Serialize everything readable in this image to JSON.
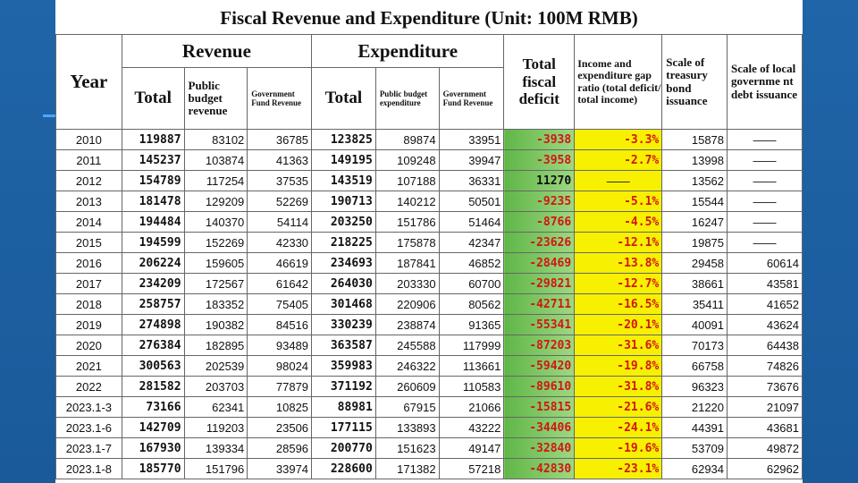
{
  "title": "Fiscal Revenue and Expenditure (Unit: 100M RMB)",
  "headers": {
    "year": "Year",
    "revenue": "Revenue",
    "expenditure": "Expenditure",
    "total": "Total",
    "public_budget_revenue": "Public budget revenue",
    "government_fund_revenue": "Government Fund Revenue",
    "public_budget_expenditure": "Public budget expenditure",
    "total_fiscal_deficit": "Total fiscal deficit",
    "gap_ratio": "Income and expenditure gap ratio (total deficit/ total income)",
    "treasury_bond": "Scale of treasury bond issuance",
    "local_debt": "Scale of local governme nt debt issuance"
  },
  "rows": [
    {
      "year": "2010",
      "rev_total": "119887",
      "rev_public": "83102",
      "rev_fund": "36785",
      "exp_total": "123825",
      "exp_public": "89874",
      "exp_fund": "33951",
      "deficit": "-3938",
      "ratio": "-3.3%",
      "treasury": "15878",
      "local": "——"
    },
    {
      "year": "2011",
      "rev_total": "145237",
      "rev_public": "103874",
      "rev_fund": "41363",
      "exp_total": "149195",
      "exp_public": "109248",
      "exp_fund": "39947",
      "deficit": "-3958",
      "ratio": "-2.7%",
      "treasury": "13998",
      "local": "——"
    },
    {
      "year": "2012",
      "rev_total": "154789",
      "rev_public": "117254",
      "rev_fund": "37535",
      "exp_total": "143519",
      "exp_public": "107188",
      "exp_fund": "36331",
      "deficit": "11270",
      "ratio": "——",
      "treasury": "13562",
      "local": "——"
    },
    {
      "year": "2013",
      "rev_total": "181478",
      "rev_public": "129209",
      "rev_fund": "52269",
      "exp_total": "190713",
      "exp_public": "140212",
      "exp_fund": "50501",
      "deficit": "-9235",
      "ratio": "-5.1%",
      "treasury": "15544",
      "local": "——"
    },
    {
      "year": "2014",
      "rev_total": "194484",
      "rev_public": "140370",
      "rev_fund": "54114",
      "exp_total": "203250",
      "exp_public": "151786",
      "exp_fund": "51464",
      "deficit": "-8766",
      "ratio": "-4.5%",
      "treasury": "16247",
      "local": "——"
    },
    {
      "year": "2015",
      "rev_total": "194599",
      "rev_public": "152269",
      "rev_fund": "42330",
      "exp_total": "218225",
      "exp_public": "175878",
      "exp_fund": "42347",
      "deficit": "-23626",
      "ratio": "-12.1%",
      "treasury": "19875",
      "local": "——"
    },
    {
      "year": "2016",
      "rev_total": "206224",
      "rev_public": "159605",
      "rev_fund": "46619",
      "exp_total": "234693",
      "exp_public": "187841",
      "exp_fund": "46852",
      "deficit": "-28469",
      "ratio": "-13.8%",
      "treasury": "29458",
      "local": "60614"
    },
    {
      "year": "2017",
      "rev_total": "234209",
      "rev_public": "172567",
      "rev_fund": "61642",
      "exp_total": "264030",
      "exp_public": "203330",
      "exp_fund": "60700",
      "deficit": "-29821",
      "ratio": "-12.7%",
      "treasury": "38661",
      "local": "43581"
    },
    {
      "year": "2018",
      "rev_total": "258757",
      "rev_public": "183352",
      "rev_fund": "75405",
      "exp_total": "301468",
      "exp_public": "220906",
      "exp_fund": "80562",
      "deficit": "-42711",
      "ratio": "-16.5%",
      "treasury": "35411",
      "local": "41652"
    },
    {
      "year": "2019",
      "rev_total": "274898",
      "rev_public": "190382",
      "rev_fund": "84516",
      "exp_total": "330239",
      "exp_public": "238874",
      "exp_fund": "91365",
      "deficit": "-55341",
      "ratio": "-20.1%",
      "treasury": "40091",
      "local": "43624"
    },
    {
      "year": "2020",
      "rev_total": "276384",
      "rev_public": "182895",
      "rev_fund": "93489",
      "exp_total": "363587",
      "exp_public": "245588",
      "exp_fund": "117999",
      "deficit": "-87203",
      "ratio": "-31.6%",
      "treasury": "70173",
      "local": "64438"
    },
    {
      "year": "2021",
      "rev_total": "300563",
      "rev_public": "202539",
      "rev_fund": "98024",
      "exp_total": "359983",
      "exp_public": "246322",
      "exp_fund": "113661",
      "deficit": "-59420",
      "ratio": "-19.8%",
      "treasury": "66758",
      "local": "74826"
    },
    {
      "year": "2022",
      "rev_total": "281582",
      "rev_public": "203703",
      "rev_fund": "77879",
      "exp_total": "371192",
      "exp_public": "260609",
      "exp_fund": "110583",
      "deficit": "-89610",
      "ratio": "-31.8%",
      "treasury": "96323",
      "local": "73676"
    },
    {
      "year": "2023.1-3",
      "rev_total": "73166",
      "rev_public": "62341",
      "rev_fund": "10825",
      "exp_total": "88981",
      "exp_public": "67915",
      "exp_fund": "21066",
      "deficit": "-15815",
      "ratio": "-21.6%",
      "treasury": "21220",
      "local": "21097"
    },
    {
      "year": "2023.1-6",
      "rev_total": "142709",
      "rev_public": "119203",
      "rev_fund": "23506",
      "exp_total": "177115",
      "exp_public": "133893",
      "exp_fund": "43222",
      "deficit": "-34406",
      "ratio": "-24.1%",
      "treasury": "44391",
      "local": "43681"
    },
    {
      "year": "2023.1-7",
      "rev_total": "167930",
      "rev_public": "139334",
      "rev_fund": "28596",
      "exp_total": "200770",
      "exp_public": "151623",
      "exp_fund": "49147",
      "deficit": "-32840",
      "ratio": "-19.6%",
      "treasury": "53709",
      "local": "49872"
    },
    {
      "year": "2023.1-8",
      "rev_total": "185770",
      "rev_public": "151796",
      "rev_fund": "33974",
      "exp_total": "228600",
      "exp_public": "171382",
      "exp_fund": "57218",
      "deficit": "-42830",
      "ratio": "-23.1%",
      "treasury": "62934",
      "local": "62962"
    }
  ],
  "colors": {
    "deficit_fill": "#7cc661",
    "ratio_fill": "#f7f000",
    "negative_text": "#d31414",
    "background": "#1a5ea0"
  }
}
